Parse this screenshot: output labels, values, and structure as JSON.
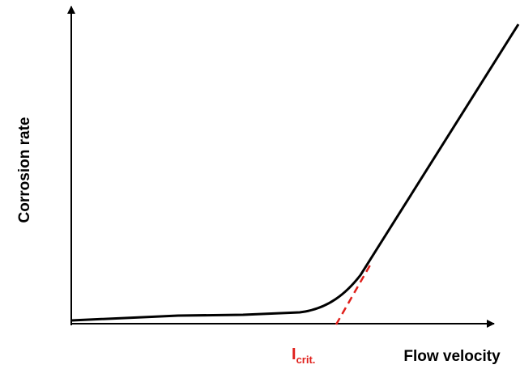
{
  "axes": {
    "y_label": "Corrosion rate",
    "x_label": "Flow velocity"
  },
  "annotation": {
    "main": "I",
    "subscript": "crit."
  }
}
